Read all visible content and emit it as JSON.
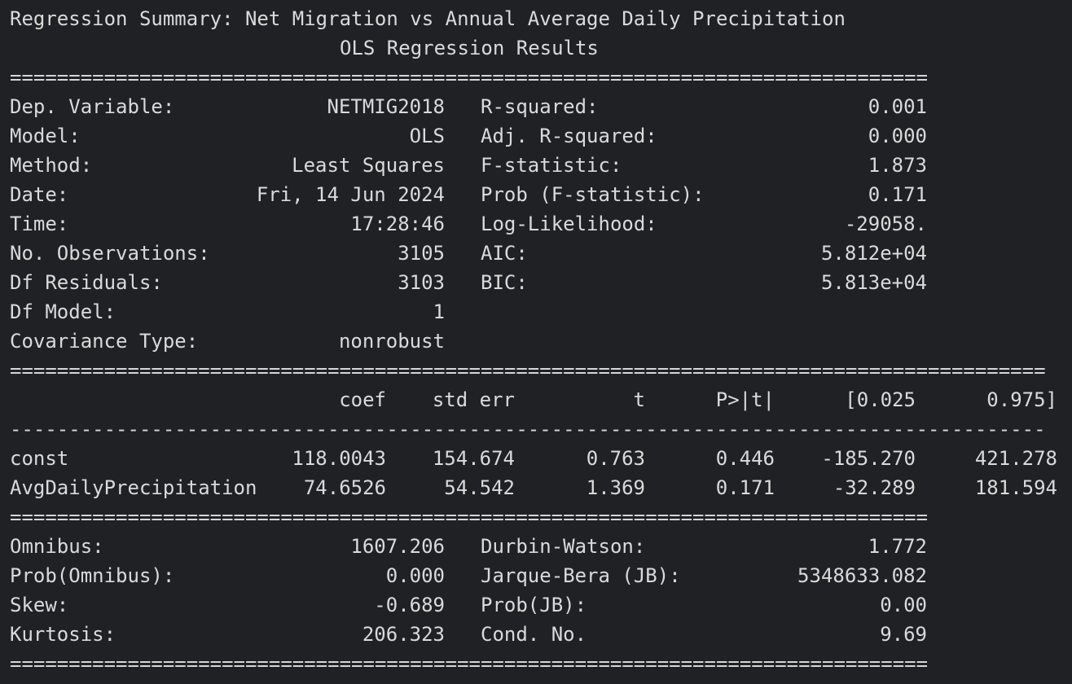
{
  "title": "Regression Summary: Net Migration vs Annual Average Daily Precipitation",
  "subtitle": "OLS Regression Results",
  "separators": {
    "double_78": "==============================================================================",
    "double_88": "========================================================================================",
    "single_88": "----------------------------------------------------------------------------------------"
  },
  "summary": {
    "left": [
      {
        "label": "Dep. Variable:",
        "value": "NETMIG2018"
      },
      {
        "label": "Model:",
        "value": "OLS"
      },
      {
        "label": "Method:",
        "value": "Least Squares"
      },
      {
        "label": "Date:",
        "value": "Fri, 14 Jun 2024"
      },
      {
        "label": "Time:",
        "value": "17:28:46"
      },
      {
        "label": "No. Observations:",
        "value": "3105"
      },
      {
        "label": "Df Residuals:",
        "value": "3103"
      },
      {
        "label": "Df Model:",
        "value": "1"
      },
      {
        "label": "Covariance Type:",
        "value": "nonrobust"
      }
    ],
    "right": [
      {
        "label": "R-squared:",
        "value": "0.001"
      },
      {
        "label": "Adj. R-squared:",
        "value": "0.000"
      },
      {
        "label": "F-statistic:",
        "value": "1.873"
      },
      {
        "label": "Prob (F-statistic):",
        "value": "0.171"
      },
      {
        "label": "Log-Likelihood:",
        "value": "-29058."
      },
      {
        "label": "AIC:",
        "value": "5.812e+04"
      },
      {
        "label": "BIC:",
        "value": "5.813e+04"
      }
    ]
  },
  "coef_table": {
    "headers": [
      "coef",
      "std err",
      "t",
      "P>|t|",
      "[0.025",
      "0.975]"
    ],
    "rows": [
      {
        "name": "const",
        "values": [
          "118.0043",
          "154.674",
          "0.763",
          "0.446",
          "-185.270",
          "421.278"
        ]
      },
      {
        "name": "AvgDailyPrecipitation",
        "values": [
          "74.6526",
          "54.542",
          "1.369",
          "0.171",
          "-32.289",
          "181.594"
        ]
      }
    ]
  },
  "diagnostics": {
    "left": [
      {
        "label": "Omnibus:",
        "value": "1607.206"
      },
      {
        "label": "Prob(Omnibus):",
        "value": "0.000"
      },
      {
        "label": "Skew:",
        "value": "-0.689"
      },
      {
        "label": "Kurtosis:",
        "value": "206.323"
      }
    ],
    "right": [
      {
        "label": "Durbin-Watson:",
        "value": "1.772"
      },
      {
        "label": "Jarque-Bera (JB):",
        "value": "5348633.082"
      },
      {
        "label": "Prob(JB):",
        "value": "0.00"
      },
      {
        "label": "Cond. No.",
        "value": "9.69"
      }
    ]
  }
}
